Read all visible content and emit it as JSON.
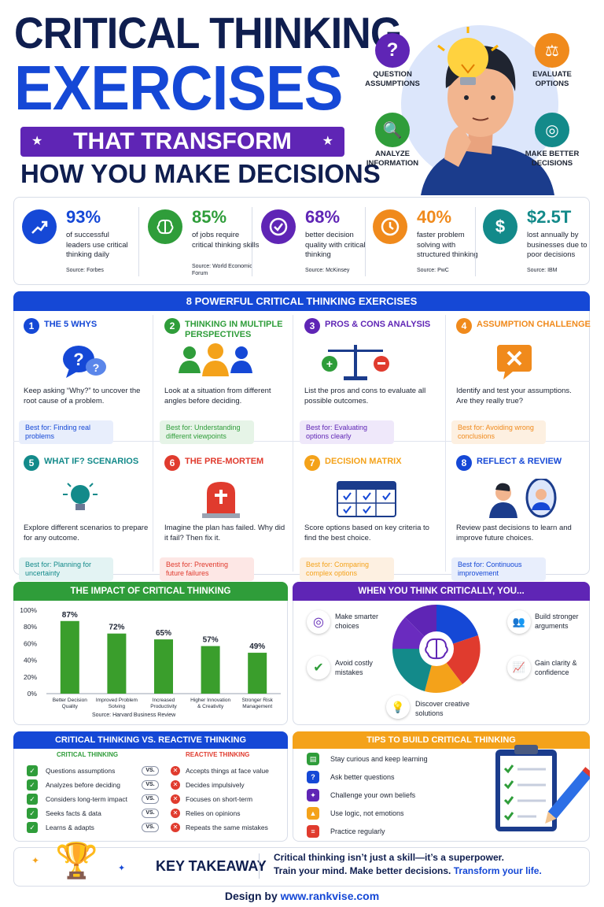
{
  "title": {
    "line1": "CRITICAL THINKING",
    "line2": "EXERCISES",
    "banner": "THAT TRANSFORM",
    "line3": "HOW YOU MAKE DECISIONS"
  },
  "hero": {
    "question": "QUESTION ASSUMPTIONS",
    "evaluate": "EVALUATE OPTIONS",
    "analyze": "ANALYZE INFORMATION",
    "better": "MAKE BETTER DECISIONS"
  },
  "stats": [
    {
      "value": "93%",
      "desc": "of successful leaders use critical thinking daily",
      "source": "Source: Forbes",
      "color": "#1548d6"
    },
    {
      "value": "85%",
      "desc": "of jobs require critical thinking skills",
      "source": "Source: World Economic Forum",
      "color": "#2f9d3a"
    },
    {
      "value": "68%",
      "desc": "better decision quality with critical thinking",
      "source": "Source: McKinsey",
      "color": "#5f25b5"
    },
    {
      "value": "40%",
      "desc": "faster problem solving with structured thinking",
      "source": "Source: PwC",
      "color": "#f08a1c"
    },
    {
      "value": "$2.5T",
      "desc": "lost annually by businesses due to poor decisions",
      "source": "Source: IBM",
      "color": "#138a8a"
    }
  ],
  "exercises_title": "8 POWERFUL CRITICAL THINKING EXERCISES",
  "exercises": [
    {
      "num": "1",
      "title": "THE 5 WHYS",
      "desc": "Keep asking “Why?” to uncover the root cause of a problem.",
      "best": "Best for: Finding real problems",
      "color": "#1548d6",
      "bg": "#e8eefc"
    },
    {
      "num": "2",
      "title": "THINKING IN MULTIPLE PERSPECTIVES",
      "desc": "Look at a situation from different angles before deciding.",
      "best": "Best for: Understanding different viewpoints",
      "color": "#2f9d3a",
      "bg": "#e6f4e7"
    },
    {
      "num": "3",
      "title": "PROS & CONS ANALYSIS",
      "desc": "List the pros and cons to evaluate all possible outcomes.",
      "best": "Best for: Evaluating options clearly",
      "color": "#5f25b5",
      "bg": "#efe8fa"
    },
    {
      "num": "4",
      "title": "ASSUMPTION CHALLENGE",
      "desc": "Identify and test your assumptions. Are they really true?",
      "best": "Best for: Avoiding wrong conclusions",
      "color": "#f08a1c",
      "bg": "#fdf0e1"
    },
    {
      "num": "5",
      "title": "WHAT IF? SCENARIOS",
      "desc": "Explore different scenarios to prepare for any outcome.",
      "best": "Best for: Planning for uncertainty",
      "color": "#138a8a",
      "bg": "#e3f3f3"
    },
    {
      "num": "6",
      "title": "THE PRE-MORTEM",
      "desc": "Imagine the plan has failed. Why did it fail? Then fix it.",
      "best": "Best for: Preventing future failures",
      "color": "#e03b2e",
      "bg": "#fde7e5"
    },
    {
      "num": "7",
      "title": "DECISION MATRIX",
      "desc": "Score options based on key criteria to find the best choice.",
      "best": "Best for: Comparing complex options",
      "color": "#f4a21a",
      "bg": "#fdf0e1"
    },
    {
      "num": "8",
      "title": "REFLECT & REVIEW",
      "desc": "Review past decisions to learn and improve future choices.",
      "best": "Best for: Continuous improvement",
      "color": "#1548d6",
      "bg": "#e8eefc"
    }
  ],
  "impact": {
    "title": "THE IMPACT OF CRITICAL THINKING",
    "source": "Source: Harvard Business Review"
  },
  "chart_data": {
    "type": "bar",
    "categories": [
      "Better Decision Quality",
      "Improved Problem Solving",
      "Increased Productivity",
      "Higher Innovation & Creativity",
      "Stronger Risk Management"
    ],
    "values": [
      87,
      72,
      65,
      57,
      49
    ],
    "data_labels": [
      "87%",
      "72%",
      "65%",
      "57%",
      "49%"
    ],
    "yticks": [
      "0%",
      "20%",
      "40%",
      "60%",
      "80%",
      "100%"
    ],
    "ylim": [
      0,
      100
    ],
    "color": "#3a9e2c"
  },
  "when": {
    "title": "WHEN YOU THINK CRITICALLY, YOU...",
    "items": [
      "Make smarter choices",
      "Build stronger arguments",
      "Avoid costly mistakes",
      "Gain clarity & confidence",
      "Discover creative solutions"
    ]
  },
  "vs": {
    "title": "CRITICAL THINKING VS. REACTIVE THINKING",
    "left_head": "CRITICAL THINKING",
    "right_head": "REACTIVE THINKING",
    "vs_label": "VS.",
    "left": [
      "Questions assumptions",
      "Analyzes before deciding",
      "Considers long-term impact",
      "Seeks facts & data",
      "Learns & adapts"
    ],
    "right": [
      "Accepts things at face value",
      "Decides impulsively",
      "Focuses on short-term",
      "Relies on opinions",
      "Repeats the same mistakes"
    ]
  },
  "tips": {
    "title": "TIPS TO BUILD CRITICAL THINKING",
    "items": [
      "Stay curious and keep learning",
      "Ask better questions",
      "Challenge your own beliefs",
      "Use logic, not emotions",
      "Practice regularly"
    ]
  },
  "takeaway": {
    "label": "KEY TAKEAWAY",
    "line1": "Critical thinking isn’t just a skill—it’s a superpower.",
    "line2a": "Train your mind. Make better decisions.",
    "line2b": "Transform your life."
  },
  "footer": {
    "prefix": "Design by",
    "site": "www.rankvise.com"
  }
}
